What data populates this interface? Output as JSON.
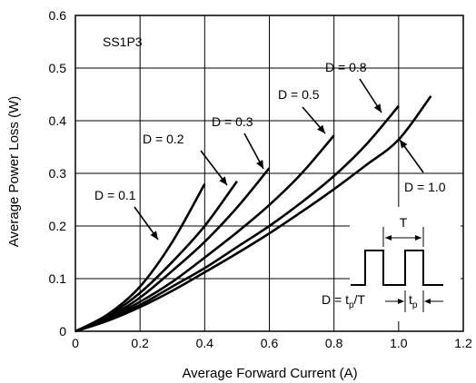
{
  "chart_data": {
    "type": "line",
    "title": "SS1P3",
    "xlabel": "Average Forward Current (A)",
    "ylabel": "Average Power Loss (W)",
    "xlim": [
      0,
      1.2
    ],
    "ylim": [
      0,
      0.6
    ],
    "x_ticks": [
      "0",
      "0.2",
      "0.4",
      "0.6",
      "0.8",
      "1.0",
      "1.2"
    ],
    "y_ticks": [
      "0",
      "0.1",
      "0.2",
      "0.3",
      "0.4",
      "0.5",
      "0.6"
    ],
    "grid": true,
    "series": [
      {
        "name": "D = 0.1",
        "x": [
          0,
          0.1,
          0.2,
          0.3,
          0.4
        ],
        "y": [
          0,
          0.032,
          0.085,
          0.17,
          0.28
        ]
      },
      {
        "name": "D = 0.2",
        "x": [
          0,
          0.1,
          0.2,
          0.3,
          0.4,
          0.5
        ],
        "y": [
          0,
          0.029,
          0.073,
          0.132,
          0.2,
          0.285
        ]
      },
      {
        "name": "D = 0.3",
        "x": [
          0,
          0.1,
          0.2,
          0.3,
          0.4,
          0.5,
          0.6
        ],
        "y": [
          0,
          0.026,
          0.064,
          0.115,
          0.17,
          0.235,
          0.31
        ]
      },
      {
        "name": "D = 0.5",
        "x": [
          0,
          0.1,
          0.2,
          0.3,
          0.4,
          0.5,
          0.6,
          0.7,
          0.8
        ],
        "y": [
          0,
          0.024,
          0.056,
          0.094,
          0.14,
          0.188,
          0.24,
          0.3,
          0.372
        ]
      },
      {
        "name": "D = 0.8",
        "x": [
          0,
          0.1,
          0.2,
          0.3,
          0.4,
          0.5,
          0.6,
          0.7,
          0.8,
          0.9,
          1.0
        ],
        "y": [
          0,
          0.022,
          0.05,
          0.085,
          0.12,
          0.16,
          0.2,
          0.245,
          0.295,
          0.355,
          0.428
        ]
      },
      {
        "name": "D = 1.0",
        "x": [
          0,
          0.1,
          0.2,
          0.3,
          0.4,
          0.5,
          0.6,
          0.7,
          0.8,
          0.9,
          1.0,
          1.1
        ],
        "y": [
          0,
          0.02,
          0.046,
          0.077,
          0.112,
          0.148,
          0.186,
          0.227,
          0.27,
          0.316,
          0.364,
          0.447
        ]
      }
    ],
    "inset": {
      "period_label": "T",
      "duty_formula_prefix": "D = t",
      "duty_formula_sub": "p",
      "duty_formula_suffix": "/T",
      "pulse_label": "t",
      "pulse_label_sub": "p"
    }
  }
}
